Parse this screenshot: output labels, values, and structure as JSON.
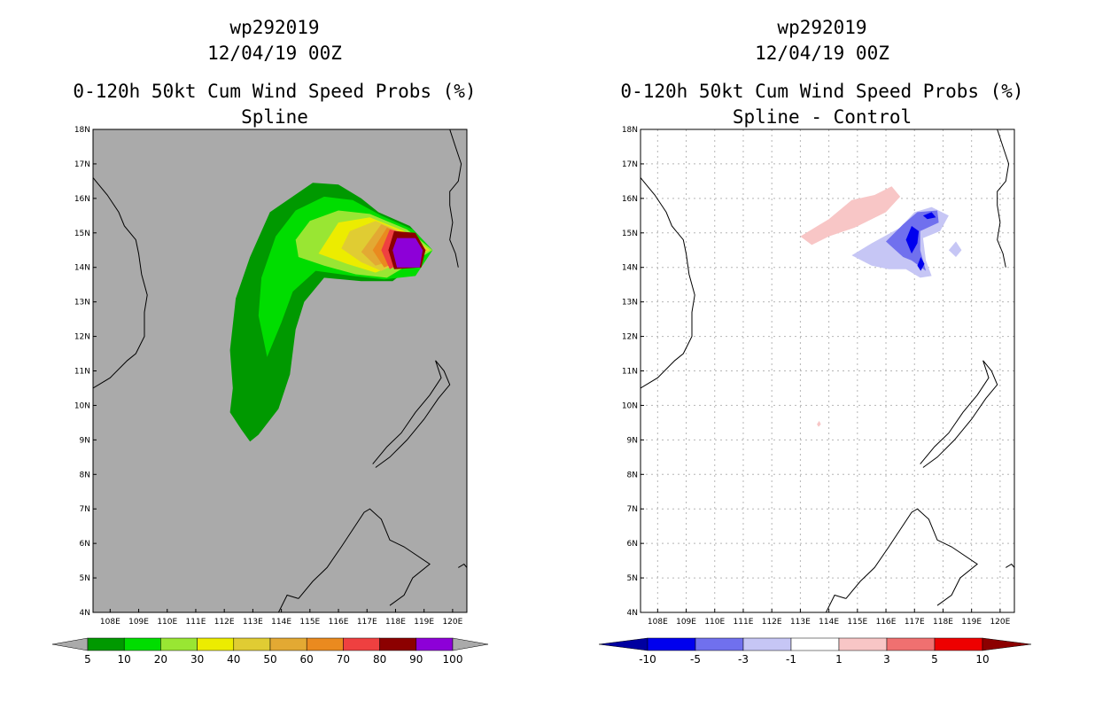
{
  "colors": {
    "land_bg": "#aaaaaa",
    "white_bg": "#ffffff",
    "coast": "#000000",
    "grid": "#b5b5b5",
    "undef": "#aaaaaa"
  },
  "chart_data": [
    {
      "type": "heatmap",
      "id": "left",
      "title": "wp292019",
      "subtitle": "12/04/19 00Z",
      "variable": "0-120h 50kt Cum Wind Speed Probs (%)",
      "run": "Spline",
      "lon_range": [
        107.4,
        120.5
      ],
      "lat_range": [
        4,
        18
      ],
      "lon_ticks": [
        "108E",
        "109E",
        "110E",
        "111E",
        "112E",
        "113E",
        "114E",
        "115E",
        "116E",
        "117E",
        "118E",
        "119E",
        "120E"
      ],
      "lat_ticks": [
        "4N",
        "5N",
        "6N",
        "7N",
        "8N",
        "9N",
        "10N",
        "11N",
        "12N",
        "13N",
        "14N",
        "15N",
        "16N",
        "17N",
        "18N"
      ],
      "grid_lines": false,
      "colorbar": {
        "levels": [
          "5",
          "10",
          "20",
          "30",
          "40",
          "50",
          "60",
          "70",
          "80",
          "90",
          "100"
        ],
        "colors": [
          "#009900",
          "#00dd00",
          "#99e633",
          "#ecec00",
          "#e0cc33",
          "#e3a933",
          "#ea8a1f",
          "#ef4040",
          "#8c0000",
          "#8d00d8"
        ],
        "end_caps": "grey"
      },
      "contours": [
        {
          "level": 5,
          "color": "#009900",
          "pts": [
            [
              112.9,
              8.95
            ],
            [
              113.2,
              9.15
            ],
            [
              113.9,
              9.9
            ],
            [
              114.3,
              10.9
            ],
            [
              114.5,
              12.2
            ],
            [
              114.8,
              13.0
            ],
            [
              115.5,
              13.7
            ],
            [
              116.8,
              13.6
            ],
            [
              117.9,
              13.6
            ],
            [
              119.3,
              14.5
            ],
            [
              118.5,
              15.2
            ],
            [
              117.4,
              15.6
            ],
            [
              116.8,
              16.0
            ],
            [
              116.0,
              16.4
            ],
            [
              115.1,
              16.45
            ],
            [
              114.3,
              16.0
            ],
            [
              113.6,
              15.6
            ],
            [
              112.9,
              14.3
            ],
            [
              112.4,
              13.1
            ],
            [
              112.2,
              11.6
            ],
            [
              112.3,
              10.5
            ],
            [
              112.2,
              9.8
            ],
            [
              112.6,
              9.3
            ]
          ]
        },
        {
          "level": 10,
          "color": "#00dd00",
          "pts": [
            [
              113.5,
              11.4
            ],
            [
              114.0,
              12.4
            ],
            [
              114.4,
              13.3
            ],
            [
              115.2,
              13.9
            ],
            [
              116.5,
              13.75
            ],
            [
              117.6,
              13.65
            ],
            [
              118.7,
              13.75
            ],
            [
              119.3,
              14.5
            ],
            [
              118.6,
              15.1
            ],
            [
              117.5,
              15.5
            ],
            [
              116.5,
              15.95
            ],
            [
              115.5,
              16.05
            ],
            [
              114.5,
              15.65
            ],
            [
              113.8,
              14.9
            ],
            [
              113.3,
              13.7
            ],
            [
              113.2,
              12.6
            ]
          ]
        },
        {
          "level": 20,
          "color": "#99e633",
          "pts": [
            [
              114.6,
              14.3
            ],
            [
              115.5,
              14.05
            ],
            [
              116.6,
              13.8
            ],
            [
              117.7,
              13.7
            ],
            [
              119.3,
              14.5
            ],
            [
              118.4,
              15.1
            ],
            [
              117.1,
              15.55
            ],
            [
              116.0,
              15.65
            ],
            [
              115.0,
              15.35
            ],
            [
              114.5,
              14.8
            ]
          ]
        },
        {
          "level": 30,
          "color": "#ecec00",
          "pts": [
            [
              115.3,
              14.4
            ],
            [
              116.3,
              14.1
            ],
            [
              117.3,
              13.85
            ],
            [
              119.2,
              14.5
            ],
            [
              118.3,
              15.05
            ],
            [
              117.1,
              15.45
            ],
            [
              116.0,
              15.3
            ]
          ]
        },
        {
          "level": 40,
          "color": "#e0cc33",
          "pts": [
            [
              116.1,
              14.55
            ],
            [
              116.8,
              14.15
            ],
            [
              117.5,
              13.9
            ],
            [
              119.15,
              14.5
            ],
            [
              118.3,
              15.0
            ],
            [
              117.3,
              15.35
            ],
            [
              116.4,
              15.05
            ]
          ]
        },
        {
          "level": 50,
          "color": "#e3a933",
          "pts": [
            [
              116.8,
              14.45
            ],
            [
              117.3,
              14.05
            ],
            [
              119.1,
              14.5
            ],
            [
              118.2,
              15.0
            ],
            [
              117.5,
              15.25
            ]
          ]
        },
        {
          "level": 60,
          "color": "#ea8a1f",
          "pts": [
            [
              117.2,
              14.5
            ],
            [
              117.6,
              14.0
            ],
            [
              119.05,
              14.5
            ],
            [
              118.2,
              14.95
            ],
            [
              117.7,
              15.15
            ]
          ]
        },
        {
          "level": 70,
          "color": "#ef4040",
          "pts": [
            [
              117.5,
              14.5
            ],
            [
              117.8,
              13.95
            ],
            [
              119.0,
              14.5
            ],
            [
              118.3,
              15.0
            ],
            [
              117.8,
              15.1
            ]
          ]
        },
        {
          "level": 80,
          "color": "#8c0000",
          "pts": [
            [
              117.75,
              14.5
            ],
            [
              117.95,
              13.95
            ],
            [
              118.9,
              14.0
            ],
            [
              119.05,
              14.5
            ],
            [
              118.7,
              15.0
            ],
            [
              117.95,
              15.05
            ]
          ]
        },
        {
          "level": 90,
          "color": "#8d00d8",
          "pts": [
            [
              117.9,
              14.5
            ],
            [
              118.05,
              14.0
            ],
            [
              118.85,
              14.0
            ],
            [
              118.95,
              14.5
            ],
            [
              118.7,
              14.85
            ],
            [
              118.05,
              14.85
            ]
          ]
        }
      ]
    },
    {
      "type": "heatmap",
      "id": "right",
      "title": "wp292019",
      "subtitle": "12/04/19 00Z",
      "variable": "0-120h 50kt Cum Wind Speed Probs (%)",
      "run": "Spline - Control",
      "lon_range": [
        107.4,
        120.5
      ],
      "lat_range": [
        4,
        18
      ],
      "lon_ticks": [
        "108E",
        "109E",
        "110E",
        "111E",
        "112E",
        "113E",
        "114E",
        "115E",
        "116E",
        "117E",
        "118E",
        "119E",
        "120E"
      ],
      "lat_ticks": [
        "4N",
        "5N",
        "6N",
        "7N",
        "8N",
        "9N",
        "10N",
        "11N",
        "12N",
        "13N",
        "14N",
        "15N",
        "16N",
        "17N",
        "18N"
      ],
      "grid_lines": true,
      "colorbar": {
        "levels": [
          "-10",
          "-5",
          "-3",
          "-1",
          "1",
          "3",
          "5",
          "10"
        ],
        "colors": [
          "#0000a0",
          "#0000ee",
          "#7070ee",
          "#c6c6f5",
          "#ffffff",
          "#f8c6c6",
          "#f07070",
          "#ee0000",
          "#8c0000"
        ],
        "end_caps": "colored"
      },
      "contours": [
        {
          "level": 1,
          "color": "#f8c6c6",
          "pts": [
            [
              113.0,
              14.9
            ],
            [
              114.0,
              15.4
            ],
            [
              114.8,
              15.95
            ],
            [
              115.6,
              16.1
            ],
            [
              116.2,
              16.35
            ],
            [
              116.5,
              16.05
            ],
            [
              116.0,
              15.6
            ],
            [
              114.9,
              15.15
            ],
            [
              114.0,
              14.9
            ],
            [
              113.4,
              14.65
            ]
          ]
        },
        {
          "level": 1,
          "color": "#f8c6c6",
          "pts": [
            [
              113.58,
              9.45
            ],
            [
              113.66,
              9.55
            ],
            [
              113.72,
              9.45
            ],
            [
              113.64,
              9.38
            ]
          ]
        },
        {
          "level": -1,
          "color": "#c6c6f5",
          "pts": [
            [
              114.8,
              14.35
            ],
            [
              115.5,
              14.7
            ],
            [
              116.5,
              15.15
            ],
            [
              117.0,
              15.6
            ],
            [
              117.6,
              15.75
            ],
            [
              118.2,
              15.5
            ],
            [
              117.9,
              15.05
            ],
            [
              117.3,
              14.85
            ],
            [
              117.4,
              14.2
            ],
            [
              117.6,
              13.75
            ],
            [
              117.2,
              13.7
            ],
            [
              116.7,
              13.95
            ],
            [
              116.1,
              13.95
            ],
            [
              115.5,
              14.05
            ]
          ]
        },
        {
          "level": -1,
          "color": "#c6c6f5",
          "pts": [
            [
              118.2,
              14.5
            ],
            [
              118.45,
              14.3
            ],
            [
              118.65,
              14.5
            ],
            [
              118.45,
              14.75
            ]
          ]
        },
        {
          "level": -3,
          "color": "#7070ee",
          "pts": [
            [
              116.0,
              14.75
            ],
            [
              116.6,
              15.25
            ],
            [
              117.1,
              15.6
            ],
            [
              117.8,
              15.65
            ],
            [
              117.85,
              15.3
            ],
            [
              117.2,
              15.05
            ],
            [
              117.2,
              14.5
            ],
            [
              117.4,
              13.9
            ],
            [
              116.9,
              14.2
            ],
            [
              116.6,
              14.3
            ]
          ]
        },
        {
          "level": -5,
          "color": "#0000ee",
          "pts": [
            [
              116.7,
              14.8
            ],
            [
              116.9,
              15.2
            ],
            [
              117.15,
              15.05
            ],
            [
              117.1,
              14.7
            ],
            [
              116.9,
              14.4
            ]
          ]
        },
        {
          "level": -5,
          "color": "#0000ee",
          "pts": [
            [
              117.3,
              15.5
            ],
            [
              117.6,
              15.6
            ],
            [
              117.75,
              15.45
            ],
            [
              117.45,
              15.4
            ]
          ]
        },
        {
          "level": -5,
          "color": "#0000ee",
          "pts": [
            [
              117.1,
              14.05
            ],
            [
              117.22,
              14.3
            ],
            [
              117.35,
              14.1
            ],
            [
              117.22,
              13.9
            ]
          ]
        }
      ]
    }
  ]
}
